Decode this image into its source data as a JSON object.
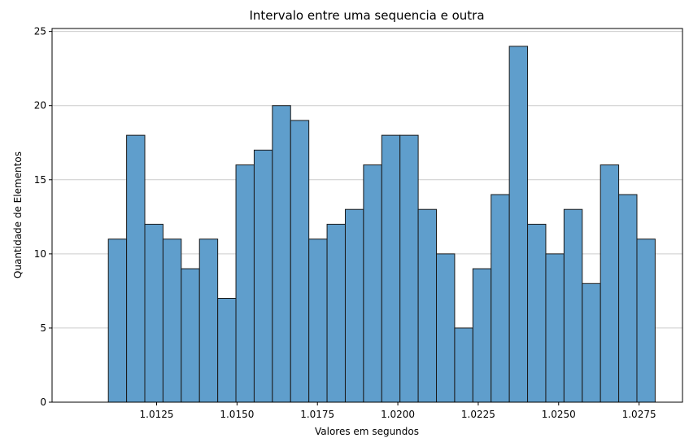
{
  "chart_data": {
    "type": "bar",
    "title": "Intervalo entre uma sequencia e outra",
    "xlabel": "Valores em segundos",
    "ylabel": "Quantidade de Elementos",
    "bin_start": 1.011,
    "bin_end": 1.028,
    "values": [
      11,
      18,
      12,
      11,
      9,
      11,
      7,
      16,
      17,
      20,
      19,
      11,
      12,
      13,
      16,
      18,
      18,
      13,
      10,
      5,
      9,
      14,
      24,
      12,
      10,
      13,
      8,
      16,
      14,
      11
    ],
    "xticks": [
      1.0125,
      1.015,
      1.0175,
      1.02,
      1.0225,
      1.025,
      1.0275
    ],
    "xtick_labels": [
      "1.0125",
      "1.0150",
      "1.0175",
      "1.0200",
      "1.0225",
      "1.0250",
      "1.0275"
    ],
    "yticks": [
      0,
      5,
      10,
      15,
      20,
      25
    ],
    "yrange": [
      0,
      25.2
    ],
    "xrange": [
      1.00925,
      1.02885
    ],
    "grid": "y",
    "bar_color": "#5f9ecc",
    "edge_color": "#1a1a1a",
    "grid_color": "#cccccc"
  }
}
